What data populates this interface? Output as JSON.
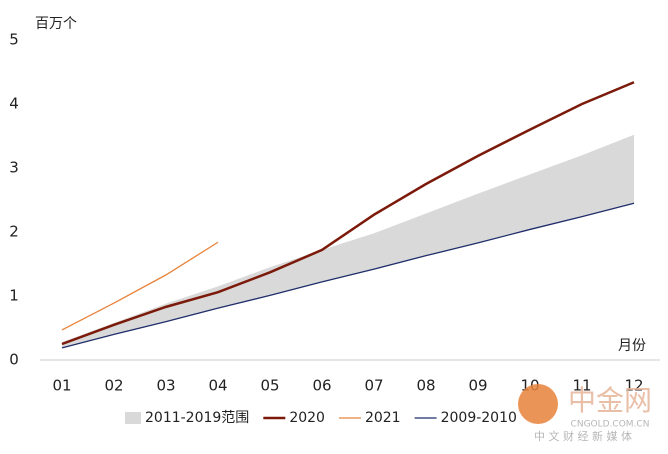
{
  "chart_data": {
    "type": "line",
    "y_label": "百万个",
    "x_label": "月份",
    "categories": [
      "01",
      "02",
      "03",
      "04",
      "05",
      "06",
      "07",
      "08",
      "09",
      "10",
      "11",
      "12"
    ],
    "ylim": [
      0,
      5
    ],
    "yticks": [
      0,
      1,
      2,
      3,
      4,
      5
    ],
    "band": {
      "name": "2011-2019范围",
      "color": "#d9d9d9",
      "low": [
        0.2,
        0.41,
        0.61,
        0.81,
        1.01,
        1.22,
        1.42,
        1.63,
        1.83,
        2.04,
        2.24,
        2.45
      ],
      "high": [
        0.28,
        0.58,
        0.88,
        1.15,
        1.45,
        1.72,
        1.98,
        2.29,
        2.6,
        2.9,
        3.2,
        3.52
      ]
    },
    "series": [
      {
        "name": "2020",
        "color": "#7b1a0a",
        "width": 2.5,
        "values": [
          0.25,
          0.55,
          0.83,
          1.06,
          1.37,
          1.72,
          2.27,
          2.75,
          3.19,
          3.6,
          4.0,
          4.34
        ]
      },
      {
        "name": "2021",
        "color": "#e8823a",
        "width": 1.3,
        "values": [
          0.47,
          0.89,
          1.33,
          1.84,
          null,
          null,
          null,
          null,
          null,
          null,
          null,
          null
        ]
      },
      {
        "name": "2009-2010",
        "color": "#1f2d6b",
        "width": 1.3,
        "values": [
          0.19,
          0.4,
          0.6,
          0.81,
          1.01,
          1.22,
          1.42,
          1.63,
          1.83,
          2.04,
          2.24,
          2.45
        ]
      }
    ],
    "watermark": {
      "title": "中金网",
      "url": "CNGOLD.COM.CN",
      "tagline": "中 文 财 经 新 媒 体"
    }
  }
}
